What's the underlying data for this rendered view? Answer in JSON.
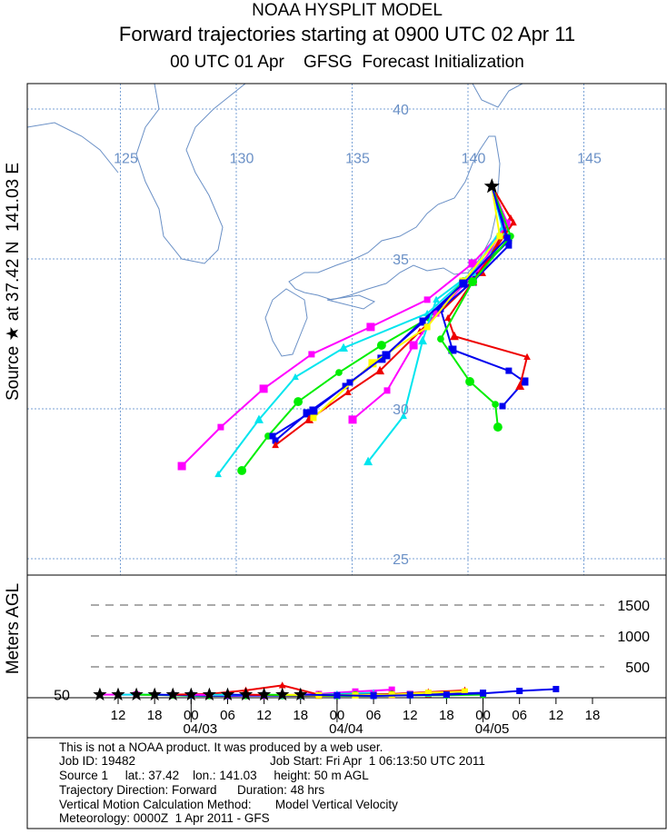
{
  "header": {
    "title": "NOAA HYSPLIT MODEL",
    "subtitle": "Forward trajectories starting at 0900 UTC 02 Apr 11",
    "init": "00 UTC 01 Apr    GFSG  Forecast Initialization"
  },
  "chart_data": {
    "type": "trajectory",
    "source_label": "Source ★ at 37.42 N  141.03 E",
    "source": {
      "lat": 37.42,
      "lon": 141.03
    },
    "lon_lines": [
      125,
      130,
      135,
      140,
      145
    ],
    "lat_lines": [
      25,
      30,
      35,
      40
    ],
    "series": [
      {
        "color": "#ff00ff",
        "marker": "square",
        "start": 9,
        "lon": [
          141.03,
          141.65,
          140.2,
          138.24,
          135.8,
          133.25,
          131.18,
          129.33,
          127.65
        ],
        "lat": [
          37.42,
          36.06,
          34.85,
          33.64,
          32.73,
          31.82,
          30.67,
          29.39,
          28.09
        ],
        "heights": [
          50,
          50,
          40,
          30,
          30,
          40,
          60,
          100,
          130
        ]
      },
      {
        "color": "#00e5ee",
        "marker": "triangle",
        "start": 12,
        "lon": [
          141.03,
          141.57,
          140.2,
          138.24,
          134.63,
          132.55,
          130.98,
          129.22
        ],
        "lat": [
          37.42,
          35.76,
          34.55,
          33.18,
          32.03,
          31.06,
          29.64,
          27.82
        ],
        "heights": [
          50,
          50,
          30,
          30,
          30,
          40,
          60,
          80
        ]
      },
      {
        "color": "#00ee00",
        "marker": "circle",
        "start": 15,
        "lon": [
          141.03,
          141.76,
          139.8,
          138.31,
          136.27,
          134.43,
          132.67,
          131.37,
          130.24
        ],
        "lat": [
          37.42,
          35.61,
          34.24,
          33.03,
          32.12,
          31.21,
          30.24,
          29.09,
          27.94
        ],
        "heights": [
          50,
          40,
          30,
          30,
          30,
          40,
          50,
          60,
          60
        ]
      },
      {
        "color": "#0000ee",
        "marker": "square",
        "start": 18,
        "lon": [
          141.03,
          141.76,
          140.2,
          138.04,
          136.27,
          134.71,
          133.06,
          131.69
        ],
        "lat": [
          37.42,
          35.61,
          34.39,
          32.88,
          31.67,
          30.76,
          29.85,
          28.94
        ],
        "heights": [
          50,
          40,
          30,
          30,
          30,
          40,
          50,
          60
        ]
      },
      {
        "color": "#ee0000",
        "marker": "triangle",
        "start": 21,
        "lon": [
          141.03,
          141.84,
          140.59,
          137.92,
          136.2,
          134.82,
          133.14,
          131.69
        ],
        "lat": [
          37.42,
          36.36,
          34.55,
          32.58,
          31.27,
          30.55,
          29.64,
          28.79
        ],
        "heights": [
          50,
          60,
          120,
          200,
          50,
          40,
          40,
          50
        ]
      },
      {
        "color": "#ff00ff",
        "marker": "square",
        "start": 24,
        "lon": [
          141.03,
          141.69,
          140.51,
          138.63,
          137.65,
          136.51,
          135.02
        ],
        "lat": [
          37.42,
          36.21,
          34.7,
          33.18,
          32.12,
          30.61,
          29.64
        ],
        "heights": [
          50,
          40,
          30,
          30,
          40,
          50,
          60
        ]
      },
      {
        "color": "#00e5ee",
        "marker": "triangle",
        "start": 27,
        "lon": [
          141.03,
          141.49,
          140.2,
          138.63,
          138.04,
          137.22,
          135.69
        ],
        "lat": [
          37.42,
          36.06,
          34.55,
          33.64,
          32.27,
          29.76,
          28.24
        ],
        "heights": [
          50,
          40,
          30,
          30,
          40,
          50,
          60
        ]
      },
      {
        "color": "#0000ee",
        "marker": "square",
        "start": 30,
        "lon": [
          141.03,
          141.76,
          140.2,
          138.82,
          139.33,
          141.76,
          142.43,
          141.49
        ],
        "lat": [
          37.42,
          35.45,
          34.24,
          33.33,
          31.97,
          31.27,
          30.91,
          30.09
        ],
        "heights": [
          50,
          40,
          30,
          30,
          40,
          50,
          60,
          80
        ]
      },
      {
        "color": "#ee0000",
        "marker": "triangle",
        "start": 33,
        "lon": [
          141.03,
          141.96,
          140.2,
          139.14,
          139.41,
          142.55,
          142.24
        ],
        "lat": [
          37.42,
          36.21,
          34.24,
          33.03,
          32.42,
          31.73,
          30.76
        ],
        "heights": [
          50,
          40,
          30,
          40,
          60,
          90,
          120
        ]
      },
      {
        "color": "#00ee00",
        "marker": "circle",
        "start": 36,
        "lon": [
          141.03,
          141.84,
          140.2,
          138.82,
          140.08,
          141.18,
          141.29
        ],
        "lat": [
          37.42,
          35.76,
          34.24,
          32.33,
          30.91,
          30.15,
          29.39
        ],
        "heights": [
          50,
          40,
          30,
          30,
          40,
          40,
          50
        ]
      },
      {
        "color": "#ffff00",
        "marker": "square",
        "start": 39,
        "lon": [
          141.03,
          141.37,
          139.8,
          138.24,
          135.88,
          133.33
        ],
        "lat": [
          37.42,
          35.76,
          34.24,
          32.73,
          31.52,
          29.7
        ],
        "heights": [
          50,
          40,
          40,
          50,
          80,
          100
        ]
      },
      {
        "color": "#0000ee",
        "marker": "square",
        "start": 42,
        "lon": [
          141.03,
          141.69,
          139.8,
          138.04,
          136.47,
          134.9,
          133.33,
          131.57
        ],
        "lat": [
          37.42,
          35.7,
          34.18,
          32.94,
          31.79,
          30.88,
          29.94,
          29.09
        ],
        "heights": [
          50,
          40,
          30,
          40,
          50,
          70,
          110,
          140
        ]
      }
    ],
    "height_panel": {
      "ylabel": "Meters AGL",
      "ylim": [
        0,
        2000
      ],
      "yticks": [
        50,
        500,
        1000,
        1500
      ],
      "xlim": [
        6,
        93
      ],
      "xticks": [
        {
          "value": 12,
          "label": "12"
        },
        {
          "value": 18,
          "label": "18"
        },
        {
          "value": 24,
          "label": "00"
        },
        {
          "value": 30,
          "label": "06"
        },
        {
          "value": 36,
          "label": "12"
        },
        {
          "value": 42,
          "label": "18"
        },
        {
          "value": 48,
          "label": "00"
        },
        {
          "value": 54,
          "label": "06"
        },
        {
          "value": 60,
          "label": "12"
        },
        {
          "value": 66,
          "label": "18"
        },
        {
          "value": 72,
          "label": "00"
        },
        {
          "value": 78,
          "label": "06"
        },
        {
          "value": 84,
          "label": "12"
        },
        {
          "value": 90,
          "label": "18"
        }
      ],
      "dates": [
        {
          "value": 24,
          "label": "04/03"
        },
        {
          "value": 48,
          "label": "04/04"
        },
        {
          "value": 72,
          "label": "04/05"
        }
      ]
    }
  },
  "footer": {
    "lines": [
      "This is not a NOAA product. It was produced by a web user.",
      "Job ID: 19482",
      "Source 1     lat.: 37.42    lon.: 141.03     height: 50 m AGL",
      "Trajectory Direction: Forward      Duration: 48 hrs",
      "Vertical Motion Calculation Method:       Model Vertical Velocity",
      "Meteorology: 0000Z  1 Apr 2011 - GFS"
    ],
    "job_start": "Job Start: Fri Apr  1 06:13:50 UTC 2011"
  }
}
